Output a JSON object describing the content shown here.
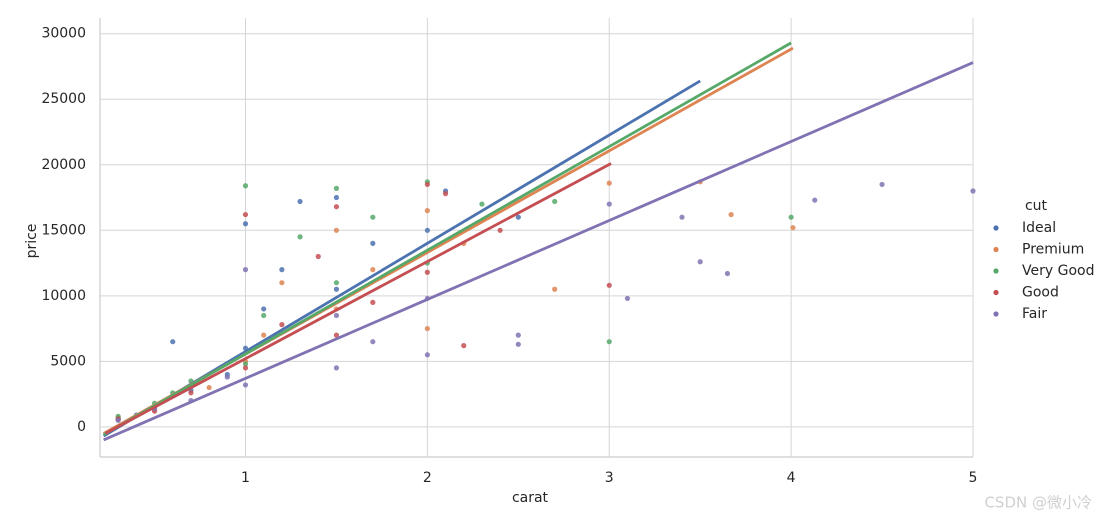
{
  "chart_data": {
    "type": "scatter",
    "x_label": "carat",
    "y_label": "price",
    "xlim": [
      0.2,
      5
    ],
    "ylim": [
      -2300,
      31200
    ],
    "xticks": [
      1,
      2,
      3,
      4,
      5
    ],
    "yticks": [
      0,
      5000,
      10000,
      15000,
      20000,
      25000,
      30000
    ],
    "grid": true,
    "legend_title": "cut",
    "legend_position": "right",
    "series": [
      {
        "name": "Ideal",
        "color": "#4c72b0",
        "x": [
          0.3,
          0.4,
          0.5,
          0.7,
          0.9,
          1.0,
          1.0,
          1.1,
          1.2,
          1.5,
          1.5,
          1.7,
          2.0,
          2.1,
          2.5,
          1.3,
          0.6
        ],
        "values": [
          600,
          900,
          1500,
          2800,
          4000,
          6000,
          15500,
          9000,
          12000,
          10500,
          17500,
          14000,
          15000,
          18000,
          16000,
          17200,
          6500
        ],
        "fit_x": [
          0.22,
          3.5
        ],
        "fit_y": [
          -700,
          26400
        ]
      },
      {
        "name": "Premium",
        "color": "#dd8452",
        "x": [
          0.3,
          0.5,
          0.8,
          1.0,
          1.1,
          1.2,
          1.5,
          1.5,
          1.7,
          2.0,
          2.0,
          2.2,
          3.0,
          3.5,
          3.67,
          4.01,
          2.7
        ],
        "values": [
          700,
          1300,
          3000,
          5000,
          7000,
          11000,
          9000,
          15000,
          12000,
          7500,
          16500,
          14000,
          18600,
          18700,
          16200,
          15200,
          10500
        ],
        "fit_x": [
          0.22,
          4.01
        ],
        "fit_y": [
          -500,
          28900
        ]
      },
      {
        "name": "Very Good",
        "color": "#55a868",
        "x": [
          0.3,
          0.5,
          0.7,
          1.0,
          1.0,
          1.1,
          1.3,
          1.5,
          1.5,
          1.7,
          2.0,
          2.0,
          2.3,
          3.0,
          4.0,
          2.7,
          0.6
        ],
        "values": [
          800,
          1800,
          3500,
          4800,
          18400,
          8500,
          14500,
          11000,
          18200,
          16000,
          12500,
          18700,
          17000,
          6500,
          16000,
          17200,
          2600
        ],
        "fit_x": [
          0.22,
          4.0
        ],
        "fit_y": [
          -600,
          29300
        ]
      },
      {
        "name": "Good",
        "color": "#c44e52",
        "x": [
          0.3,
          0.5,
          0.7,
          1.0,
          1.0,
          1.2,
          1.4,
          1.5,
          1.5,
          1.7,
          2.0,
          2.0,
          2.4,
          3.0,
          2.2,
          2.1
        ],
        "values": [
          600,
          1200,
          2600,
          4500,
          16200,
          7800,
          13000,
          7000,
          16800,
          9500,
          11800,
          18500,
          15000,
          10800,
          6200,
          17800
        ],
        "fit_x": [
          0.23,
          3.01
        ],
        "fit_y": [
          -500,
          20100
        ]
      },
      {
        "name": "Fair",
        "color": "#8172b3",
        "x": [
          0.3,
          0.5,
          0.7,
          0.9,
          1.0,
          1.0,
          1.5,
          1.5,
          1.7,
          2.0,
          2.0,
          2.5,
          3.0,
          3.1,
          3.4,
          3.65,
          4.13,
          4.5,
          5.0,
          3.5,
          2.5
        ],
        "values": [
          500,
          1400,
          2000,
          3800,
          3200,
          12000,
          4500,
          8500,
          6500,
          5500,
          9800,
          7000,
          17000,
          9800,
          16000,
          11700,
          17300,
          18500,
          18000,
          12600,
          6300
        ],
        "fit_x": [
          0.22,
          5.0
        ],
        "fit_y": [
          -1000,
          27800
        ]
      }
    ]
  },
  "watermark": "CSDN @微小冷"
}
